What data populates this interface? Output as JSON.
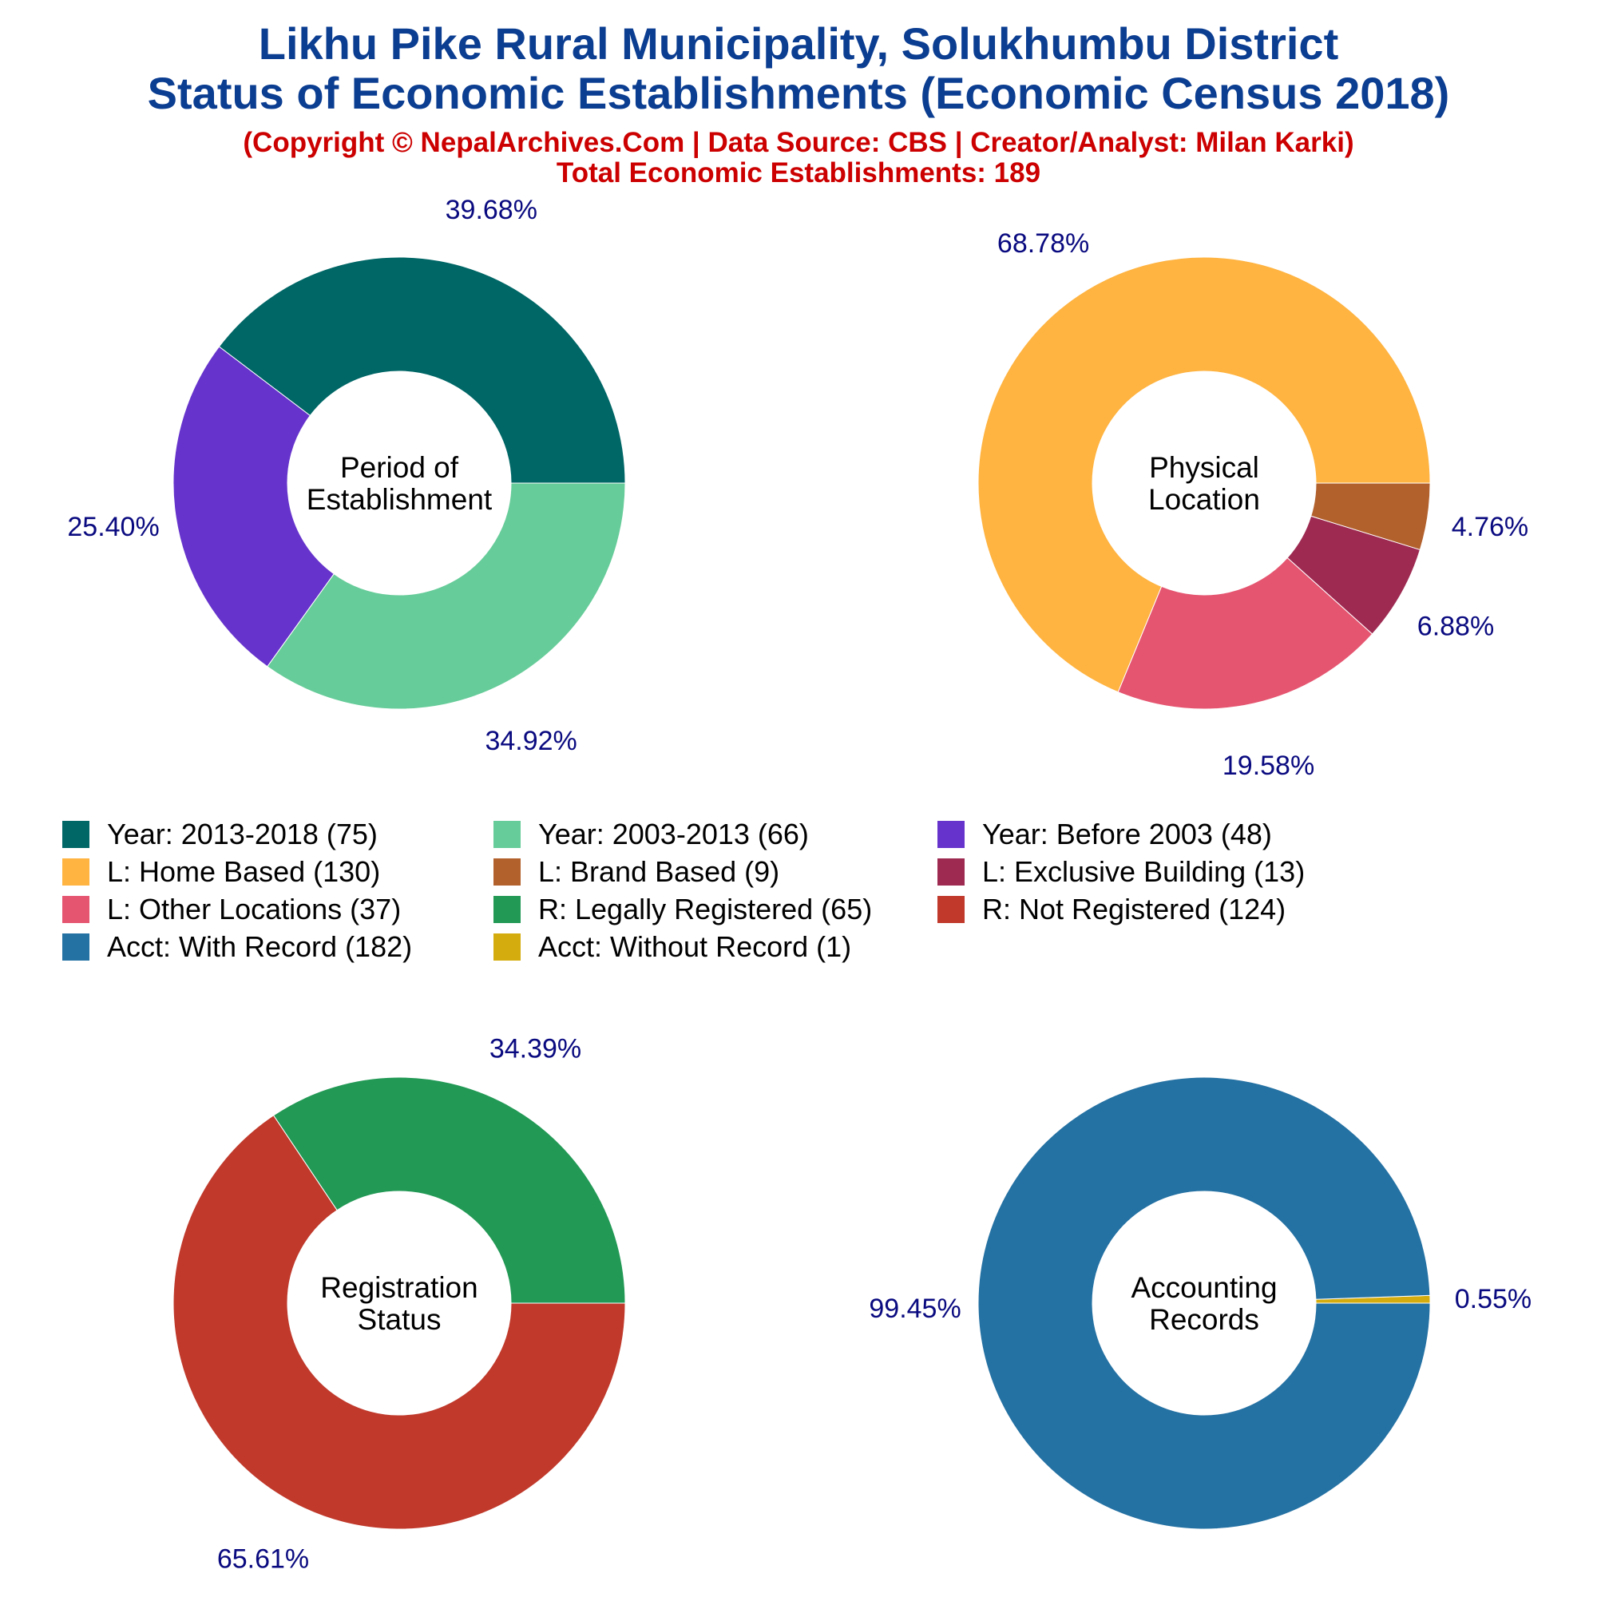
{
  "header": {
    "title_line1": "Likhu Pike Rural Municipality, Solukhumbu District",
    "title_line2": "Status of Economic Establishments (Economic Census 2018)",
    "subtitle_line1": "(Copyright © NepalArchives.Com | Data Source: CBS | Creator/Analyst: Milan Karki)",
    "subtitle_line2": "Total Economic Establishments: 189"
  },
  "colors": {
    "title": "#0b3d91",
    "subtitle": "#cc0000",
    "percent_label": "#0a0a80",
    "center_label": "#000000"
  },
  "chart_data": [
    {
      "type": "pie",
      "title": "Period of Establishment",
      "title_lines": [
        "Period of",
        "Establishment"
      ],
      "slices": [
        {
          "legend": "Year: 2013-2018 (75)",
          "value": 75,
          "percent_label": "39.68%",
          "color": "#006666"
        },
        {
          "legend": "Year: Before 2003 (48)",
          "value": 48,
          "percent_label": "25.40%",
          "color": "#6633cc"
        },
        {
          "legend": "Year: 2003-2013 (66)",
          "value": 66,
          "percent_label": "34.92%",
          "color": "#66cc99"
        }
      ]
    },
    {
      "type": "pie",
      "title": "Physical Location",
      "title_lines": [
        "Physical",
        "Location"
      ],
      "slices": [
        {
          "legend": "L: Home Based (130)",
          "value": 130,
          "percent_label": "68.78%",
          "color": "#ffb340"
        },
        {
          "legend": "L: Other Locations (37)",
          "value": 37,
          "percent_label": "19.58%",
          "color": "#e55570"
        },
        {
          "legend": "L: Exclusive Building (13)",
          "value": 13,
          "percent_label": "6.88%",
          "color": "#9e2a52"
        },
        {
          "legend": "L: Brand Based (9)",
          "value": 9,
          "percent_label": "4.76%",
          "color": "#b2612d"
        }
      ]
    },
    {
      "type": "pie",
      "title": "Registration Status",
      "title_lines": [
        "Registration",
        "Status"
      ],
      "slices": [
        {
          "legend": "R: Legally Registered (65)",
          "value": 65,
          "percent_label": "34.39%",
          "color": "#229955"
        },
        {
          "legend": "R: Not Registered (124)",
          "value": 124,
          "percent_label": "65.61%",
          "color": "#c0392b"
        }
      ]
    },
    {
      "type": "pie",
      "title": "Accounting Records",
      "title_lines": [
        "Accounting",
        "Records"
      ],
      "slices": [
        {
          "legend": "Acct: Without Record (1)",
          "value": 1,
          "percent_label": "0.55%",
          "color": "#d4ac0d"
        },
        {
          "legend": "Acct: With Record (182)",
          "value": 182,
          "percent_label": "99.45%",
          "color": "#2471a3"
        }
      ]
    }
  ],
  "legend": [
    {
      "label": "Year: 2013-2018 (75)",
      "color": "#006666"
    },
    {
      "label": "Year: 2003-2013 (66)",
      "color": "#66cc99"
    },
    {
      "label": "Year: Before 2003 (48)",
      "color": "#6633cc"
    },
    {
      "label": "L: Home Based (130)",
      "color": "#ffb340"
    },
    {
      "label": "L: Brand Based (9)",
      "color": "#b2612d"
    },
    {
      "label": "L: Exclusive Building (13)",
      "color": "#9e2a52"
    },
    {
      "label": "L: Other Locations (37)",
      "color": "#e55570"
    },
    {
      "label": "R: Legally Registered (65)",
      "color": "#229955"
    },
    {
      "label": "R: Not Registered (124)",
      "color": "#c0392b"
    },
    {
      "label": "Acct: With Record (182)",
      "color": "#2471a3"
    },
    {
      "label": "Acct: Without Record (1)",
      "color": "#d4ac0d"
    }
  ]
}
